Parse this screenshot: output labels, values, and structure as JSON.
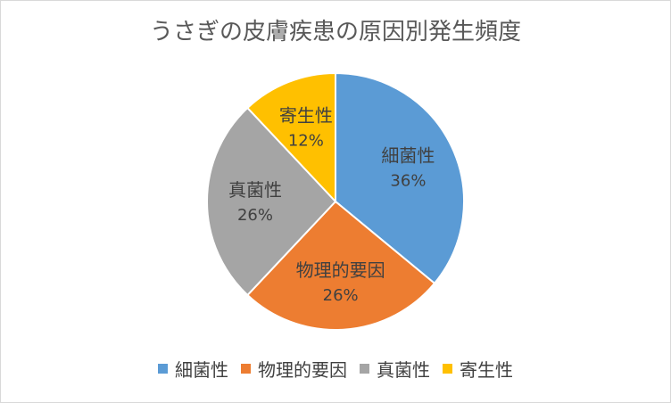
{
  "chart_data": {
    "type": "pie",
    "title": "うさぎの皮膚疾患の原因別発生頻度",
    "categories": [
      "細菌性",
      "物理的要因",
      "真菌性",
      "寄生性"
    ],
    "values": [
      36,
      26,
      26,
      12
    ],
    "data_labels": [
      "36%",
      "26%",
      "26%",
      "12%"
    ],
    "colors": [
      "#5b9bd5",
      "#ed7d31",
      "#a5a5a5",
      "#ffc000"
    ],
    "start_angle_deg": 0,
    "direction": "clockwise",
    "legend_position": "bottom",
    "label_position": "inside"
  }
}
